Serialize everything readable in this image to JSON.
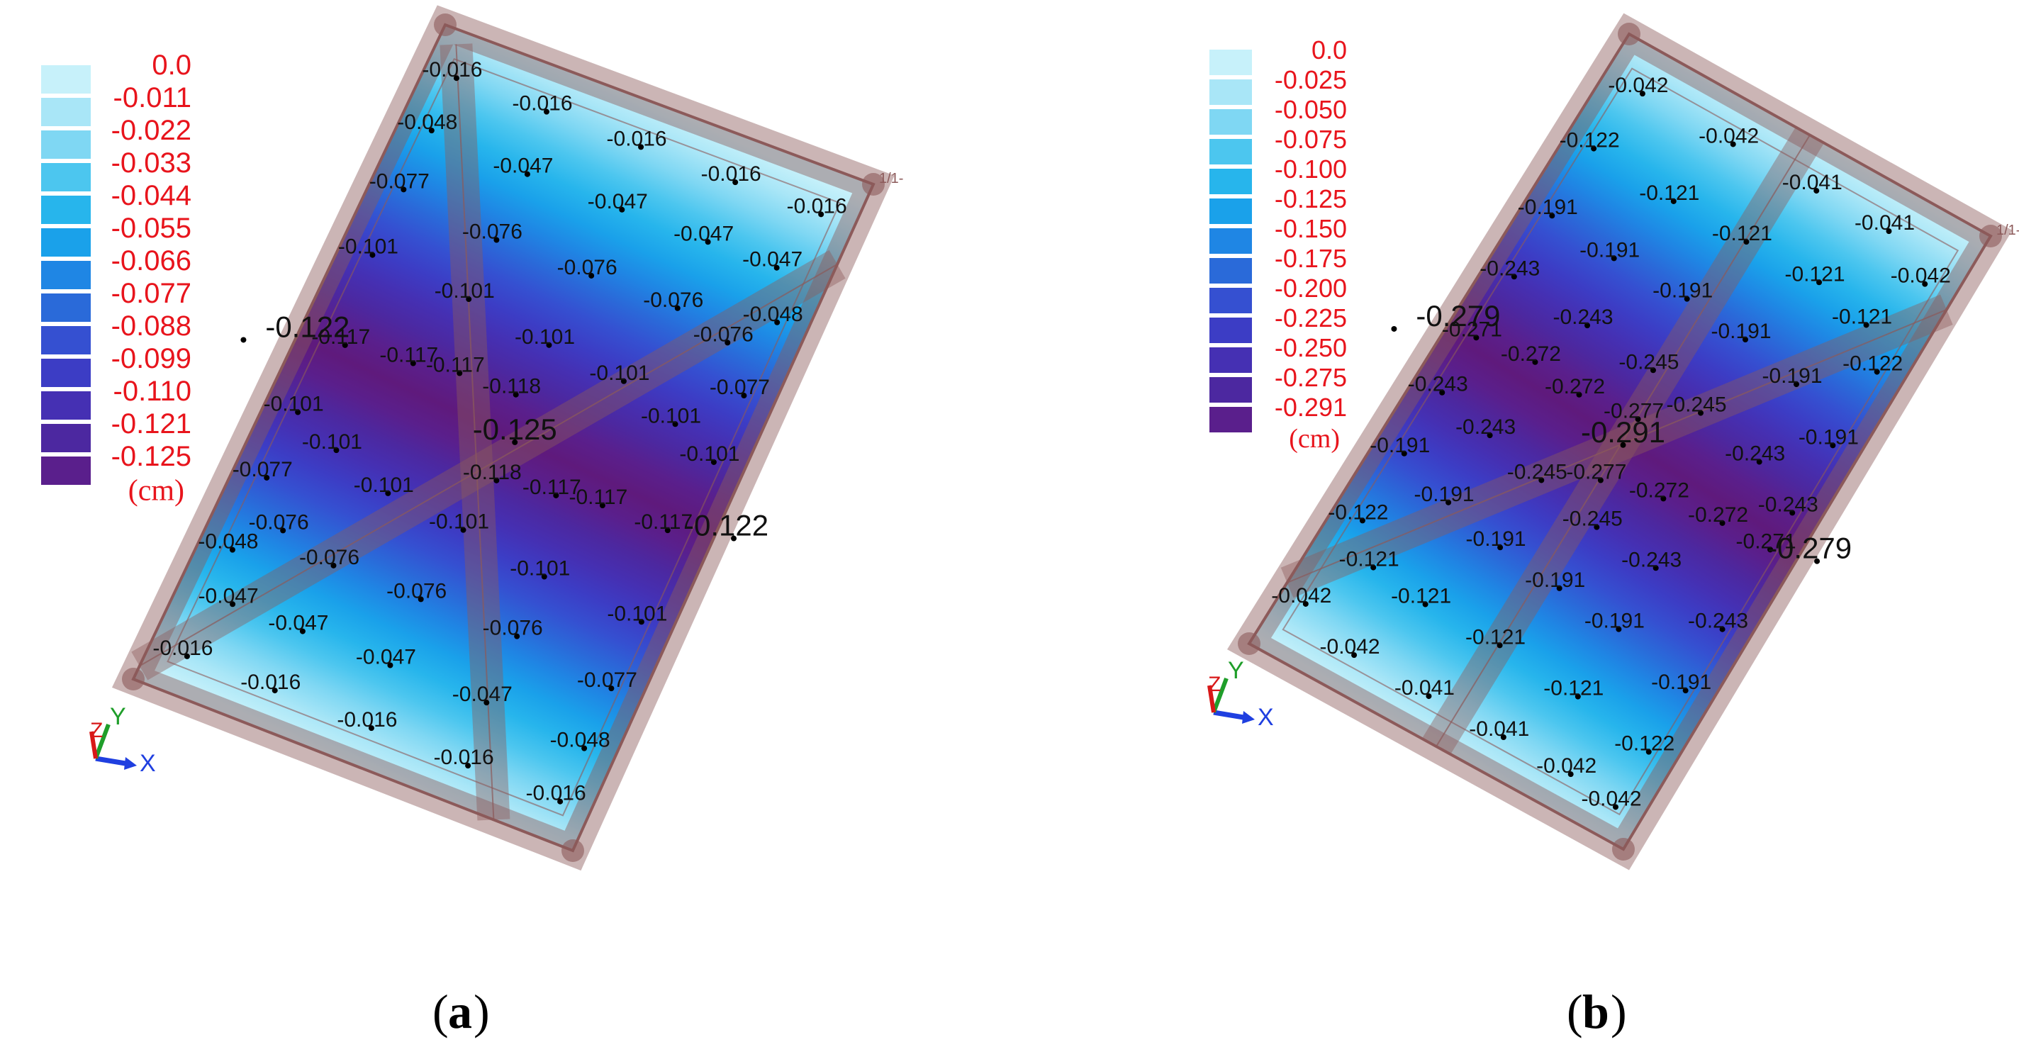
{
  "colors": {
    "legend_text": "#e8141c",
    "label_text": "#111111",
    "frame": "#8c5a5a",
    "axis_x": "#1f3fe0",
    "axis_y": "#1f9e2a",
    "axis_z": "#d81818",
    "scale": [
      "#c7f1fa",
      "#a9e6f7",
      "#7fd7f3",
      "#4cc6ef",
      "#27b5ec",
      "#1aa1ea",
      "#1f86e4",
      "#2a6ad9",
      "#3550d1",
      "#3c3dc5",
      "#4530b3",
      "#4c28a0",
      "#5a1f8c",
      "#5f1a7c"
    ]
  },
  "icons": {
    "triad": "xyz-axis-triad-icon"
  },
  "panels": [
    {
      "caption_letter": "a",
      "legend": {
        "values": [
          "0.0",
          "-0.011",
          "-0.022",
          "-0.033",
          "-0.044",
          "-0.055",
          "-0.066",
          "-0.077",
          "-0.088",
          "-0.099",
          "-0.110",
          "-0.121",
          "-0.125"
        ],
        "unit": "(cm)"
      },
      "axes": {
        "x": "X",
        "y": "Y",
        "z": "Z"
      },
      "node_tag": "1/1-",
      "labels": [
        {
          "t": "-0.016",
          "u": 0.07,
          "v": 0.06
        },
        {
          "t": "-0.016",
          "u": 0.28,
          "v": 0.06
        },
        {
          "t": "-0.016",
          "u": 0.5,
          "v": 0.06
        },
        {
          "t": "-0.016",
          "u": 0.72,
          "v": 0.06
        },
        {
          "t": "-0.016",
          "u": 0.92,
          "v": 0.06
        },
        {
          "t": "-0.048",
          "u": 0.07,
          "v": 0.14
        },
        {
          "t": "-0.047",
          "u": 0.3,
          "v": 0.15
        },
        {
          "t": "-0.047",
          "u": 0.52,
          "v": 0.15
        },
        {
          "t": "-0.047",
          "u": 0.72,
          "v": 0.15
        },
        {
          "t": "-0.047",
          "u": 0.88,
          "v": 0.15
        },
        {
          "t": "-0.048",
          "u": 0.93,
          "v": 0.22
        },
        {
          "t": "-0.077",
          "u": 0.07,
          "v": 0.23
        },
        {
          "t": "-0.076",
          "u": 0.3,
          "v": 0.25
        },
        {
          "t": "-0.076",
          "u": 0.52,
          "v": 0.25
        },
        {
          "t": "-0.076",
          "u": 0.72,
          "v": 0.25
        },
        {
          "t": "-0.076",
          "u": 0.85,
          "v": 0.27
        },
        {
          "t": "-0.077",
          "u": 0.93,
          "v": 0.33
        },
        {
          "t": "-0.101",
          "u": 0.07,
          "v": 0.33
        },
        {
          "t": "-0.101",
          "u": 0.3,
          "v": 0.34
        },
        {
          "t": "-0.101",
          "u": 0.5,
          "v": 0.36
        },
        {
          "t": "-0.101",
          "u": 0.68,
          "v": 0.37
        },
        {
          "t": "-0.101",
          "u": 0.82,
          "v": 0.4
        },
        {
          "t": "-0.101",
          "u": 0.93,
          "v": 0.43
        },
        {
          "t": "-0.117",
          "u": 0.1,
          "v": 0.46
        },
        {
          "t": "-0.117",
          "u": 0.25,
          "v": 0.45
        },
        {
          "t": "-0.117",
          "u": 0.35,
          "v": 0.44
        },
        {
          "t": "-0.118",
          "u": 0.48,
          "v": 0.44
        },
        {
          "t": "-0.118",
          "u": 0.52,
          "v": 0.56
        },
        {
          "t": "-0.117",
          "u": 0.65,
          "v": 0.55
        },
        {
          "t": "-0.117",
          "u": 0.75,
          "v": 0.54
        },
        {
          "t": "-0.117",
          "u": 0.9,
          "v": 0.54
        },
        {
          "t": "-0.101",
          "u": 0.07,
          "v": 0.57
        },
        {
          "t": "-0.101",
          "u": 0.18,
          "v": 0.6
        },
        {
          "t": "-0.101",
          "u": 0.32,
          "v": 0.63
        },
        {
          "t": "-0.101",
          "u": 0.5,
          "v": 0.64
        },
        {
          "t": "-0.101",
          "u": 0.7,
          "v": 0.66
        },
        {
          "t": "-0.101",
          "u": 0.93,
          "v": 0.67
        },
        {
          "t": "-0.077",
          "u": 0.07,
          "v": 0.67
        },
        {
          "t": "-0.076",
          "u": 0.15,
          "v": 0.73
        },
        {
          "t": "-0.076",
          "u": 0.28,
          "v": 0.75
        },
        {
          "t": "-0.076",
          "u": 0.48,
          "v": 0.75
        },
        {
          "t": "-0.076",
          "u": 0.7,
          "v": 0.75
        },
        {
          "t": "-0.077",
          "u": 0.93,
          "v": 0.77
        },
        {
          "t": "-0.048",
          "u": 0.07,
          "v": 0.78
        },
        {
          "t": "-0.047",
          "u": 0.12,
          "v": 0.85
        },
        {
          "t": "-0.047",
          "u": 0.28,
          "v": 0.85
        },
        {
          "t": "-0.047",
          "u": 0.48,
          "v": 0.85
        },
        {
          "t": "-0.047",
          "u": 0.7,
          "v": 0.85
        },
        {
          "t": "-0.048",
          "u": 0.93,
          "v": 0.86
        },
        {
          "t": "-0.016",
          "u": 0.08,
          "v": 0.94
        },
        {
          "t": "-0.016",
          "u": 0.28,
          "v": 0.94
        },
        {
          "t": "-0.016",
          "u": 0.5,
          "v": 0.94
        },
        {
          "t": "-0.016",
          "u": 0.72,
          "v": 0.94
        },
        {
          "t": "-0.016",
          "u": 0.93,
          "v": 0.94
        }
      ],
      "big_labels": [
        {
          "t": "-0.122",
          "u": 0.02,
          "v": 0.47
        },
        {
          "t": "-0.125",
          "u": 0.52,
          "v": 0.5
        },
        {
          "t": "-0.122",
          "u": 0.98,
          "v": 0.53
        }
      ]
    },
    {
      "caption_letter": "b",
      "legend": {
        "values": [
          "0.0",
          "-0.025",
          "-0.050",
          "-0.075",
          "-0.100",
          "-0.125",
          "-0.150",
          "-0.175",
          "-0.200",
          "-0.225",
          "-0.250",
          "-0.275",
          "-0.291"
        ],
        "unit": "(cm)"
      },
      "axes": {
        "x": "X",
        "y": "Y",
        "z": "Z"
      },
      "node_tag": "1/1-",
      "labels": [
        {
          "t": "-0.042",
          "u": 0.1,
          "v": 0.06
        },
        {
          "t": "-0.042",
          "u": 0.35,
          "v": 0.06
        },
        {
          "t": "-0.041",
          "u": 0.58,
          "v": 0.06
        },
        {
          "t": "-0.041",
          "u": 0.78,
          "v": 0.06
        },
        {
          "t": "-0.042",
          "u": 0.92,
          "v": 0.1
        },
        {
          "t": "-0.122",
          "u": 0.07,
          "v": 0.16
        },
        {
          "t": "-0.121",
          "u": 0.3,
          "v": 0.17
        },
        {
          "t": "-0.121",
          "u": 0.5,
          "v": 0.17
        },
        {
          "t": "-0.121",
          "u": 0.7,
          "v": 0.17
        },
        {
          "t": "-0.121",
          "u": 0.85,
          "v": 0.19
        },
        {
          "t": "-0.122",
          "u": 0.93,
          "v": 0.24
        },
        {
          "t": "-0.191",
          "u": 0.07,
          "v": 0.27
        },
        {
          "t": "-0.191",
          "u": 0.25,
          "v": 0.28
        },
        {
          "t": "-0.191",
          "u": 0.45,
          "v": 0.28
        },
        {
          "t": "-0.191",
          "u": 0.62,
          "v": 0.29
        },
        {
          "t": "-0.191",
          "u": 0.78,
          "v": 0.31
        },
        {
          "t": "-0.191",
          "u": 0.93,
          "v": 0.36
        },
        {
          "t": "-0.243",
          "u": 0.07,
          "v": 0.37
        },
        {
          "t": "-0.243",
          "u": 0.28,
          "v": 0.38
        },
        {
          "t": "-0.245",
          "u": 0.47,
          "v": 0.39
        },
        {
          "t": "-0.245",
          "u": 0.62,
          "v": 0.41
        },
        {
          "t": "-0.243",
          "u": 0.8,
          "v": 0.43
        },
        {
          "t": "-0.243",
          "u": 0.93,
          "v": 0.47
        },
        {
          "t": "-0.271",
          "u": 0.07,
          "v": 0.47
        },
        {
          "t": "-0.272",
          "u": 0.22,
          "v": 0.46
        },
        {
          "t": "-0.272",
          "u": 0.35,
          "v": 0.47
        },
        {
          "t": "-0.277",
          "u": 0.5,
          "v": 0.46
        },
        {
          "t": "-0.277",
          "u": 0.5,
          "v": 0.56
        },
        {
          "t": "-0.272",
          "u": 0.65,
          "v": 0.54
        },
        {
          "t": "-0.272",
          "u": 0.8,
          "v": 0.53
        },
        {
          "t": "-0.271",
          "u": 0.93,
          "v": 0.53
        },
        {
          "t": "-0.243",
          "u": 0.07,
          "v": 0.56
        },
        {
          "t": "-0.243",
          "u": 0.22,
          "v": 0.58
        },
        {
          "t": "-0.245",
          "u": 0.38,
          "v": 0.6
        },
        {
          "t": "-0.245",
          "u": 0.55,
          "v": 0.62
        },
        {
          "t": "-0.243",
          "u": 0.72,
          "v": 0.63
        },
        {
          "t": "-0.243",
          "u": 0.93,
          "v": 0.66
        },
        {
          "t": "-0.191",
          "u": 0.07,
          "v": 0.66
        },
        {
          "t": "-0.191",
          "u": 0.22,
          "v": 0.69
        },
        {
          "t": "-0.191",
          "u": 0.38,
          "v": 0.71
        },
        {
          "t": "-0.191",
          "u": 0.55,
          "v": 0.72
        },
        {
          "t": "-0.191",
          "u": 0.72,
          "v": 0.73
        },
        {
          "t": "-0.191",
          "u": 0.93,
          "v": 0.76
        },
        {
          "t": "-0.122",
          "u": 0.07,
          "v": 0.77
        },
        {
          "t": "-0.121",
          "u": 0.15,
          "v": 0.82
        },
        {
          "t": "-0.121",
          "u": 0.3,
          "v": 0.83
        },
        {
          "t": "-0.121",
          "u": 0.5,
          "v": 0.83
        },
        {
          "t": "-0.121",
          "u": 0.72,
          "v": 0.84
        },
        {
          "t": "-0.122",
          "u": 0.93,
          "v": 0.86
        },
        {
          "t": "-0.042",
          "u": 0.06,
          "v": 0.91
        },
        {
          "t": "-0.042",
          "u": 0.22,
          "v": 0.94
        },
        {
          "t": "-0.041",
          "u": 0.42,
          "v": 0.94
        },
        {
          "t": "-0.041",
          "u": 0.62,
          "v": 0.94
        },
        {
          "t": "-0.042",
          "u": 0.8,
          "v": 0.94
        },
        {
          "t": "-0.042",
          "u": 0.93,
          "v": 0.95
        }
      ],
      "big_labels": [
        {
          "t": "-0.279",
          "u": 0.02,
          "v": 0.47
        },
        {
          "t": "-0.291",
          "u": 0.5,
          "v": 0.5
        },
        {
          "t": "-0.279",
          "u": 0.98,
          "v": 0.53
        }
      ]
    }
  ]
}
